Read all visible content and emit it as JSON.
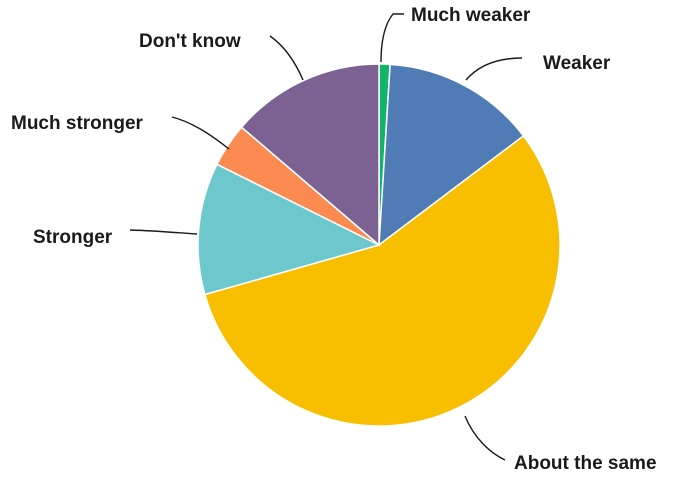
{
  "chart_data": {
    "type": "pie",
    "title": "",
    "categories": [
      "Much weaker",
      "Weaker",
      "About the same",
      "Stronger",
      "Much stronger",
      "Don't know"
    ],
    "values": [
      1,
      14,
      57,
      12,
      4,
      14
    ],
    "colors": [
      "#13b36b",
      "#507cb6",
      "#f8be00",
      "#6cc8cc",
      "#fa8a50",
      "#7b6292"
    ],
    "start": "12 o'clock, clockwise",
    "legend": "none (direct labels with leader lines)"
  }
}
